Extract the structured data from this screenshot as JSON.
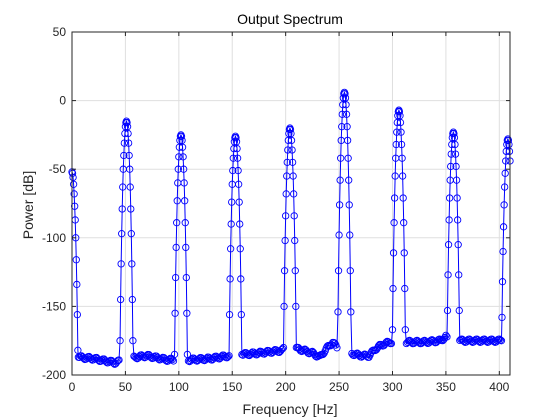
{
  "chart_data": {
    "type": "line",
    "title": "Output Spectrum",
    "xlabel": "Frequency [Hz]",
    "ylabel": "Power [dB]",
    "xlim": [
      0,
      410
    ],
    "ylim": [
      -200,
      50
    ],
    "x_ticks": [
      0,
      50,
      100,
      150,
      200,
      250,
      300,
      350,
      400
    ],
    "y_ticks": [
      50,
      0,
      -50,
      -100,
      -150,
      -200
    ],
    "x_tick_labels": [
      "0",
      "50",
      "100",
      "150",
      "200",
      "250",
      "300",
      "350",
      "400"
    ],
    "y_tick_labels": [
      "50",
      "0",
      "-50",
      "-100",
      "-150",
      "-200"
    ],
    "grid": true,
    "series": [
      {
        "color": "#0000ff",
        "marker": "circle",
        "peaks": [
          {
            "x": 0,
            "peak": -52
          },
          {
            "x": 51,
            "peak": -15
          },
          {
            "x": 102,
            "peak": -25
          },
          {
            "x": 153,
            "peak": -26
          },
          {
            "x": 204,
            "peak": -20
          },
          {
            "x": 255,
            "peak": 6
          },
          {
            "x": 306,
            "peak": -7
          },
          {
            "x": 357,
            "peak": -23
          },
          {
            "x": 408,
            "peak": -28
          }
        ],
        "floor": [
          {
            "x": 5,
            "y": -187
          },
          {
            "x": 20,
            "y": -188
          },
          {
            "x": 40,
            "y": -191
          },
          {
            "x": 45,
            "y": -190
          },
          {
            "x": 60,
            "y": -187
          },
          {
            "x": 70,
            "y": -186
          },
          {
            "x": 90,
            "y": -189
          },
          {
            "x": 96,
            "y": -189
          },
          {
            "x": 110,
            "y": -189
          },
          {
            "x": 130,
            "y": -188
          },
          {
            "x": 147,
            "y": -186
          },
          {
            "x": 160,
            "y": -185
          },
          {
            "x": 175,
            "y": -184
          },
          {
            "x": 198,
            "y": -182
          },
          {
            "x": 212,
            "y": -181
          },
          {
            "x": 225,
            "y": -184
          },
          {
            "x": 232,
            "y": -187
          },
          {
            "x": 238,
            "y": -181
          },
          {
            "x": 244,
            "y": -176
          },
          {
            "x": 248,
            "y": -180
          },
          {
            "x": 265,
            "y": -185
          },
          {
            "x": 272,
            "y": -186
          },
          {
            "x": 278,
            "y": -186
          },
          {
            "x": 284,
            "y": -181
          },
          {
            "x": 290,
            "y": -178
          },
          {
            "x": 298,
            "y": -176
          },
          {
            "x": 314,
            "y": -176
          },
          {
            "x": 330,
            "y": -176
          },
          {
            "x": 345,
            "y": -175
          },
          {
            "x": 350,
            "y": -172
          },
          {
            "x": 364,
            "y": -175
          },
          {
            "x": 385,
            "y": -175
          },
          {
            "x": 403,
            "y": -175
          }
        ]
      }
    ]
  }
}
